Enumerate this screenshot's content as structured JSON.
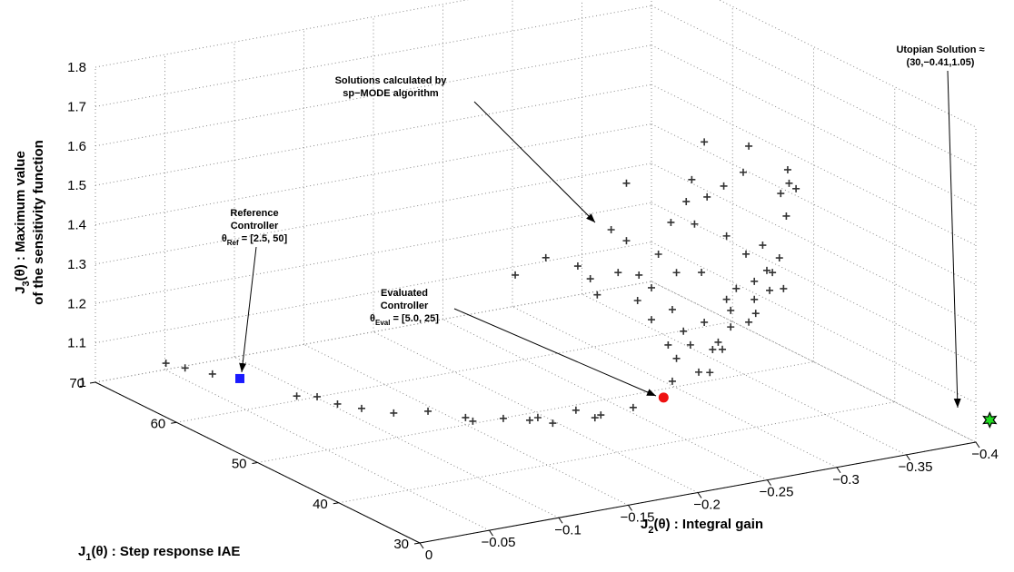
{
  "chart_data": {
    "type": "scatter3d",
    "xlabel": [
      "J",
      "2",
      "(θ) : Integral gain"
    ],
    "ylabel": [
      "J",
      "1",
      "(θ) : Step response IAE"
    ],
    "zlabel": [
      [
        "J",
        "3",
        "(θ) : Maximum value"
      ],
      [
        "of the sensitivity function"
      ]
    ],
    "xlim": [
      0,
      -0.4
    ],
    "xticks": [
      0,
      {
        "value": -0.05,
        "label": "−0.05"
      },
      {
        "value": -0.1,
        "label": "−0.1"
      },
      {
        "value": -0.15,
        "label": "−0.15"
      },
      {
        "value": -0.2,
        "label": "−0.2"
      },
      {
        "value": -0.25,
        "label": "−0.25"
      },
      {
        "value": -0.3,
        "label": "−0.3"
      },
      {
        "value": -0.35,
        "label": "−0.35"
      },
      {
        "value": -0.4,
        "label": "−0.4"
      }
    ],
    "ylim": [
      30,
      70
    ],
    "yticks": [
      30,
      40,
      50,
      60,
      70
    ],
    "zlim": [
      1,
      1.8
    ],
    "zticks": [
      1,
      1.1,
      1.2,
      1.3,
      1.4,
      1.5,
      1.6,
      1.7,
      1.8
    ],
    "grid": true,
    "series": [
      {
        "color": "#333333",
        "marker": "plus",
        "x": [
          -0.049,
          -0.054,
          -0.062,
          -0.083,
          -0.093,
          -0.096,
          -0.104,
          -0.116,
          -0.136,
          -0.149,
          -0.149,
          -0.168,
          -0.18,
          -0.187,
          -0.189,
          -0.215,
          -0.217,
          -0.223,
          -0.248,
          -0.127,
          -0.149,
          -0.172,
          -0.181,
          -0.186,
          -0.196,
          -0.201,
          -0.207,
          -0.207,
          -0.215,
          -0.216,
          -0.225,
          -0.23,
          -0.225,
          -0.239,
          -0.24,
          -0.243,
          -0.25,
          -0.248,
          -0.254,
          -0.256,
          -0.263,
          -0.261,
          -0.263,
          -0.265,
          -0.267,
          -0.269,
          -0.273,
          -0.276,
          -0.277,
          -0.279,
          -0.279,
          -0.282,
          -0.286,
          -0.291,
          -0.293,
          -0.295,
          -0.295,
          -0.299,
          -0.3,
          -0.305,
          -0.308,
          -0.31,
          -0.312,
          -0.317,
          -0.318,
          -0.323,
          -0.322,
          -0.324,
          -0.329,
          -0.32,
          -0.253,
          -0.237,
          -0.243,
          -0.24,
          -0.259,
          -0.282,
          -0.299
        ],
        "y": [
          69.7,
          68.2,
          66.2,
          59.4,
          58.6,
          56.6,
          55.0,
          53.1,
          52.3,
          49.9,
          49.0,
          48.5,
          47.3,
          47.5,
          46.0,
          47.6,
          45.6,
          45.9,
          46.2,
          40,
          40,
          40,
          40,
          40,
          40,
          40,
          40,
          40,
          40,
          40,
          40,
          40,
          40,
          40,
          40,
          40,
          40,
          40,
          40,
          40,
          40,
          40,
          40,
          40,
          40,
          40,
          40,
          40,
          40,
          40,
          40,
          40,
          40,
          40,
          40,
          40,
          40,
          40,
          40,
          40,
          40,
          40,
          40,
          40,
          40,
          40,
          40,
          40,
          40,
          40,
          40,
          40,
          40,
          40,
          40,
          40,
          40
        ],
        "z": [
          1.02,
          1.02,
          1.02,
          1.02,
          1.02,
          1.02,
          1.02,
          1.02,
          1.02,
          1.02,
          1.02,
          1.02,
          1.02,
          1.02,
          1.02,
          1.02,
          1.02,
          1.02,
          1.02,
          1.497,
          1.527,
          1.491,
          1.453,
          1.409,
          1.568,
          1.456,
          1.679,
          1.533,
          1.376,
          1.44,
          1.402,
          1.484,
          1.321,
          1.559,
          1.337,
          1.429,
          1.605,
          1.277,
          1.658,
          1.544,
          1.748,
          1.418,
          1.29,
          1.607,
          1.16,
          1.217,
          1.233,
          1.213,
          1.627,
          1.499,
          1.338,
          1.308,
          1.361,
          1.653,
          1.444,
          1.717,
          1.27,
          1.371,
          1.289,
          1.459,
          1.393,
          1.341,
          1.385,
          1.419,
          1.582,
          1.639,
          1.522,
          1.604,
          1.587,
          1.339,
          1.239,
          1.249,
          1.211,
          1.155,
          1.166,
          1.266,
          1.325
        ]
      },
      {
        "color": "#1a1aff",
        "marker": "square",
        "x": [
          -0.08
        ],
        "y": [
          65.9
        ],
        "z": [
          1.0
        ]
      },
      {
        "color": "#ee1111",
        "marker": "circle",
        "x": [
          -0.283
        ],
        "y": [
          48.45
        ],
        "z": [
          1.0
        ]
      },
      {
        "color": "#22dd22",
        "marker": "star",
        "x": [
          -0.41
        ],
        "y": [
          30
        ],
        "z": [
          1.05
        ]
      }
    ],
    "annotations": [
      {
        "lines": [
          "Reference",
          "Controller"
        ],
        "theta": [
          "θ",
          "Ref",
          " = [2.5, 50]"
        ]
      },
      {
        "lines": [
          "Evaluated",
          "Controller"
        ],
        "theta": [
          "θ",
          "Eval",
          " = [5.0, 25]"
        ]
      },
      {
        "lines": [
          "Solutions calculated by",
          "sp−MODE algorithm"
        ]
      },
      {
        "lines": [
          "Utopian Solution ≈",
          "(30,−0.41,1.05)"
        ]
      }
    ]
  }
}
